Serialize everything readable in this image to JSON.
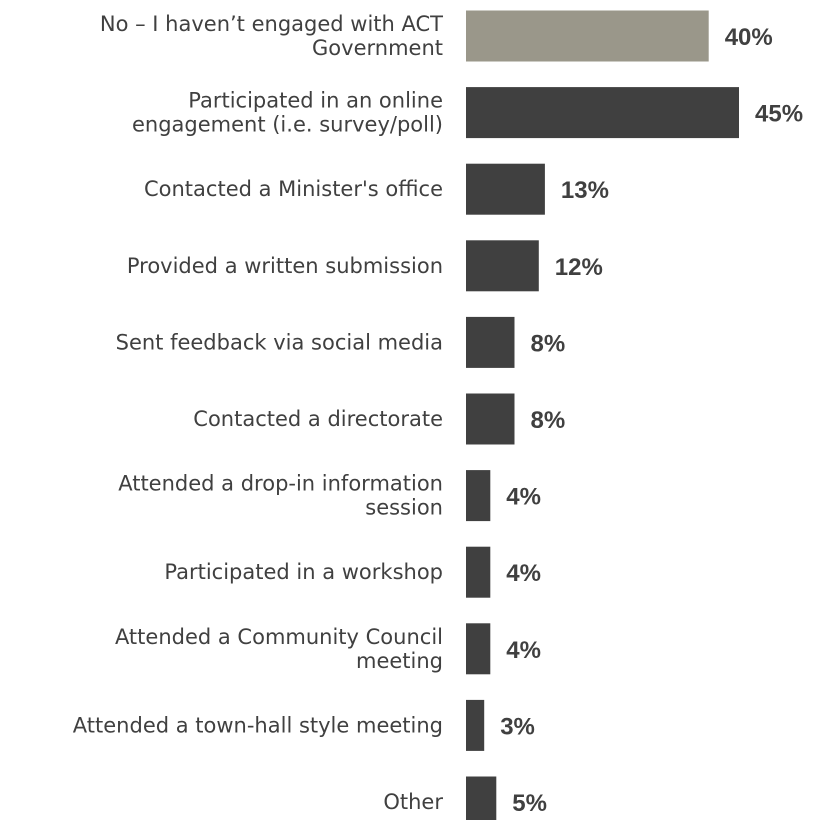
{
  "chart_data": {
    "type": "bar",
    "orientation": "horizontal",
    "categories": [
      "No – I haven’t engaged with ACT Government",
      "Participated in an online engagement (i.e. survey/poll)",
      "Contacted a Minister's office",
      "Provided a written submission",
      "Sent feedback via social media",
      "Contacted a directorate",
      "Attended a drop-in information session",
      "Participated in a workshop",
      "Attended a Community Council meeting",
      "Attended a town-hall style meeting",
      "Other"
    ],
    "category_lines": [
      [
        "No – I haven’t engaged with ACT",
        "Government"
      ],
      [
        "Participated in an online",
        "engagement (i.e. survey/poll)"
      ],
      [
        "Contacted a Minister's office"
      ],
      [
        "Provided a written submission"
      ],
      [
        "Sent feedback via social media"
      ],
      [
        "Contacted a directorate"
      ],
      [
        "Attended a drop-in information",
        "session"
      ],
      [
        "Participated in a workshop"
      ],
      [
        "Attended a Community Council",
        "meeting"
      ],
      [
        "Attended a town-hall style meeting"
      ],
      [
        "Other"
      ]
    ],
    "values": [
      40,
      45,
      13,
      12,
      8,
      8,
      4,
      4,
      4,
      3,
      5
    ],
    "value_labels": [
      "40%",
      "45%",
      "13%",
      "12%",
      "8%",
      "8%",
      "4%",
      "4%",
      "4%",
      "3%",
      "5%"
    ],
    "bar_colors": [
      "#9a978a",
      "#404040",
      "#404040",
      "#404040",
      "#404040",
      "#404040",
      "#404040",
      "#404040",
      "#404040",
      "#404040",
      "#404040"
    ],
    "text_color": "#404040",
    "xlim": [
      0,
      45
    ],
    "grid": false,
    "legend": "none"
  }
}
